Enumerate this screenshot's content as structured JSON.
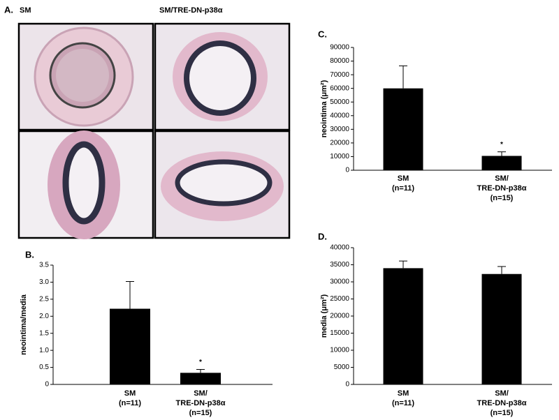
{
  "figure": {
    "panel_a": {
      "label": "A.",
      "column_labels": [
        "SM",
        "SM/TRE-DN-p38α"
      ]
    }
  },
  "chart_data": [
    {
      "type": "bar",
      "panel_label": "B.",
      "y_label": "neointima/media",
      "categories": [
        [
          "SM",
          "(n=11)"
        ],
        [
          "SM/",
          "TRE-DN-p38α",
          "(n=15)"
        ]
      ],
      "values": [
        2.22,
        0.34
      ],
      "errors": [
        0.8,
        0.1
      ],
      "value_annotations": [
        null,
        "*"
      ],
      "color": "#000000",
      "ylim": [
        0,
        3.5
      ],
      "yticks": [
        0,
        0.5,
        {
          "value": 1,
          "label": "1.0"
        },
        1.5,
        {
          "value": 2,
          "label": "2.0"
        },
        2.5,
        {
          "value": 3,
          "label": "3.0"
        },
        3.5
      ]
    },
    {
      "type": "bar",
      "panel_label": "C.",
      "y_label": "neointima (μm²)",
      "categories": [
        [
          "SM",
          "(n=11)"
        ],
        [
          "SM/",
          "TRE-DN-p38α",
          "(n=15)"
        ]
      ],
      "values": [
        60000,
        10500
      ],
      "errors": [
        16500,
        3000
      ],
      "value_annotations": [
        null,
        "*"
      ],
      "color": "#000000",
      "ylim": [
        0,
        90000
      ],
      "yticks": [
        0,
        10000,
        20000,
        30000,
        40000,
        50000,
        60000,
        70000,
        80000,
        90000
      ]
    },
    {
      "type": "bar",
      "panel_label": "D.",
      "y_label": "media (μm²)",
      "categories": [
        [
          "SM",
          "(n=11)"
        ],
        [
          "SM/",
          "TRE-DN-p38α",
          "(n=15)"
        ]
      ],
      "values": [
        34000,
        32300
      ],
      "errors": [
        2100,
        2200
      ],
      "color": "#000000",
      "ylim": [
        0,
        40000
      ],
      "yticks": [
        0,
        5000,
        10000,
        15000,
        20000,
        25000,
        30000,
        35000,
        40000
      ]
    }
  ]
}
